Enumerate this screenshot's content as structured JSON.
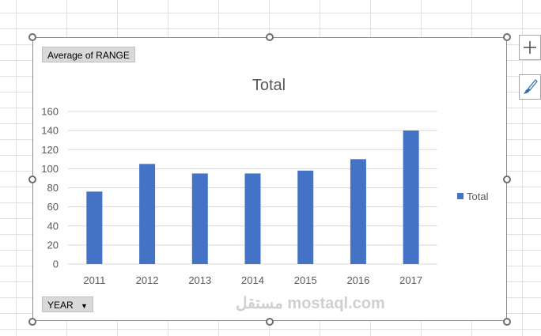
{
  "pivot": {
    "value_field": "Average of RANGE",
    "axis_field": "YEAR",
    "dropdown_glyph": "▼"
  },
  "side_buttons": {
    "add_elements_icon": "plus-icon",
    "styles_icon": "brush-icon"
  },
  "watermark": "مستقل mostaql.com",
  "colors": {
    "bar": "#4472c4",
    "grid": "#d9d9d9",
    "axis_text": "#595959",
    "title": "#595959"
  },
  "chart_data": {
    "type": "bar",
    "title": "Total",
    "categories": [
      "2011",
      "2012",
      "2013",
      "2014",
      "2015",
      "2016",
      "2017"
    ],
    "series": [
      {
        "name": "Total",
        "values": [
          76,
          105,
          95,
          95,
          98,
          110,
          140
        ]
      }
    ],
    "y_ticks": [
      0,
      20,
      40,
      60,
      80,
      100,
      120,
      140,
      160
    ],
    "ylim": [
      0,
      160
    ],
    "xlabel": "",
    "ylabel": "",
    "grid": true,
    "legend_position": "right"
  }
}
